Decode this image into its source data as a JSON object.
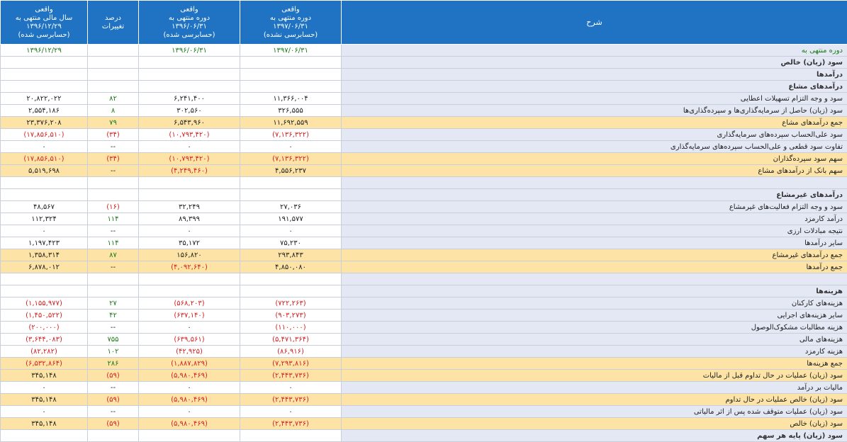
{
  "header": {
    "col_fy_1396": [
      "واقعی",
      "سال مالی منتهی به",
      "۱۳۹۶/۱۲/۲۹",
      "(حسابرسی شده)"
    ],
    "col_change": [
      "درصد",
      "تغییرات"
    ],
    "col_p_1396": [
      "واقعی",
      "دوره منتهی به",
      "۱۳۹۶/۰۶/۳۱",
      "(حسابرسی شده)"
    ],
    "col_p_1397": [
      "واقعی",
      "دوره منتهی به",
      "۱۳۹۷/۰۶/۳۱",
      "(حسابرسی نشده)"
    ],
    "col_desc": "شرح"
  },
  "colors": {
    "header_bg": "#1f73c2",
    "desc_bg": "#e4e8f4",
    "highlight_bg": "#fde4a6",
    "negative": "#d62020",
    "positive": "#1a7a1a"
  },
  "rows": [
    {
      "desc": "دوره منتهی به",
      "fy": "۱۳۹۶/۱۲/۲۹",
      "chg": "",
      "p96": "۱۳۹۶/۰۶/۳۱",
      "p97": "۱۳۹۷/۰۶/۳۱",
      "type": "green"
    },
    {
      "desc": "سود (زیان) خالص",
      "fy": "",
      "chg": "",
      "p96": "",
      "p97": "",
      "type": "bold"
    },
    {
      "desc": "درآمدها",
      "fy": "",
      "chg": "",
      "p96": "",
      "p97": "",
      "type": "bold"
    },
    {
      "desc": "درآمدهای مشاع",
      "fy": "",
      "chg": "",
      "p96": "",
      "p97": "",
      "type": "bold"
    },
    {
      "desc": "سود و وجه التزام تسهیلات اعطایی",
      "fy": "۲۰,۸۲۲,۰۲۲",
      "chg": "۸۲",
      "p96": "۶,۲۴۱,۴۰۰",
      "p97": "۱۱,۳۶۶,۰۰۴",
      "type": "normal"
    },
    {
      "desc": "سود (زیان) حاصل از سرمایه‌گذاری‌ها و سپرده‌گذاری‌ها",
      "fy": "۲,۵۵۴,۱۸۶",
      "chg": "۸",
      "p96": "۳۰۲,۵۶۰",
      "p97": "۳۲۶,۵۵۵",
      "type": "normal"
    },
    {
      "desc": "جمع درآمدهای مشاع",
      "fy": "۲۳,۳۷۶,۲۰۸",
      "chg": "۷۹",
      "p96": "۶,۵۴۳,۹۶۰",
      "p97": "۱۱,۶۹۲,۵۵۹",
      "type": "highlight"
    },
    {
      "desc": "سود علی‌الحساب سپرده‌های سرمایه‌گذاری",
      "fy": "(۱۷,۸۵۶,۵۱۰)",
      "chg": "(۳۴)",
      "p96": "(۱۰,۷۹۳,۴۲۰)",
      "p97": "(۷,۱۳۶,۳۲۲)",
      "type": "normal"
    },
    {
      "desc": "تفاوت سود قطعی و علی‌الحساب سپرده‌های سرمایه‌گذاری",
      "fy": "۰",
      "chg": "--",
      "p96": "۰",
      "p97": "۰",
      "type": "normal"
    },
    {
      "desc": "سهم سود سپرده‌گذاران",
      "fy": "(۱۷,۸۵۶,۵۱۰)",
      "chg": "(۳۴)",
      "p96": "(۱۰,۷۹۳,۴۲۰)",
      "p97": "(۷,۱۳۶,۳۲۲)",
      "type": "highlight"
    },
    {
      "desc": "سهم بانک از درآمدهای مشاع",
      "fy": "۵,۵۱۹,۶۹۸",
      "chg": "--",
      "p96": "(۴,۲۴۹,۴۶۰)",
      "p97": "۴,۵۵۶,۲۳۷",
      "type": "highlight"
    },
    {
      "desc": "",
      "fy": "",
      "chg": "",
      "p96": "",
      "p97": "",
      "type": "normal"
    },
    {
      "desc": "درآمدهای غیرمشاع",
      "fy": "",
      "chg": "",
      "p96": "",
      "p97": "",
      "type": "bold"
    },
    {
      "desc": "سود و وجه التزام فعالیت‌های غیرمشاع",
      "fy": "۴۸,۵۶۷",
      "chg": "(۱۶)",
      "p96": "۳۲,۲۴۹",
      "p97": "۲۷,۰۳۶",
      "type": "normal"
    },
    {
      "desc": "درآمد کارمزد",
      "fy": "۱۱۲,۳۲۴",
      "chg": "۱۱۴",
      "p96": "۸۹,۳۹۹",
      "p97": "۱۹۱,۵۷۷",
      "type": "normal"
    },
    {
      "desc": "نتیجه مبادلات ارزی",
      "fy": "۰",
      "chg": "--",
      "p96": "۰",
      "p97": "۰",
      "type": "normal"
    },
    {
      "desc": "سایر درآمدها",
      "fy": "۱,۱۹۷,۴۲۳",
      "chg": "۱۱۴",
      "p96": "۳۵,۱۷۲",
      "p97": "۷۵,۲۳۰",
      "type": "normal"
    },
    {
      "desc": "جمع درآمدهای غیرمشاع",
      "fy": "۱,۳۵۸,۳۱۴",
      "chg": "۸۷",
      "p96": "۱۵۶,۸۲۰",
      "p97": "۲۹۳,۸۴۳",
      "type": "highlight"
    },
    {
      "desc": "جمع درآمدها",
      "fy": "۶,۸۷۸,۰۱۲",
      "chg": "--",
      "p96": "(۴,۰۹۲,۶۴۰)",
      "p97": "۴,۸۵۰,۰۸۰",
      "type": "highlight"
    },
    {
      "desc": "",
      "fy": "",
      "chg": "",
      "p96": "",
      "p97": "",
      "type": "normal"
    },
    {
      "desc": "هزینه‌ها",
      "fy": "",
      "chg": "",
      "p96": "",
      "p97": "",
      "type": "bold"
    },
    {
      "desc": "هزینه‌های کارکنان",
      "fy": "(۱,۱۵۵,۹۷۷)",
      "chg": "۲۷",
      "p96": "(۵۶۸,۲۰۳)",
      "p97": "(۷۲۲,۲۶۳)",
      "type": "normal"
    },
    {
      "desc": "سایر هزینه‌های اجرایی",
      "fy": "(۱,۴۵۰,۵۲۲)",
      "chg": "۴۲",
      "p96": "(۶۳۷,۱۴۰)",
      "p97": "(۹۰۳,۲۷۳)",
      "type": "normal"
    },
    {
      "desc": "هزینه مطالبات مشکوک‌الوصول",
      "fy": "(۲۰۰,۰۰۰)",
      "chg": "--",
      "p96": "۰",
      "p97": "(۱۱۰,۰۰۰)",
      "type": "normal"
    },
    {
      "desc": "هزینه‌های مالی",
      "fy": "(۳,۶۴۴,۰۸۳)",
      "chg": "۷۵۵",
      "p96": "(۶۳۹,۵۶۱)",
      "p97": "(۵,۴۷۱,۳۶۴)",
      "type": "normal"
    },
    {
      "desc": "هزینه کارمزد",
      "fy": "(۸۲,۲۸۲)",
      "chg": "۱۰۲",
      "p96": "(۴۲,۹۲۵)",
      "p97": "(۸۶,۹۱۶)",
      "type": "normal"
    },
    {
      "desc": "جمع هزینه‌ها",
      "fy": "(۶,۵۳۲,۸۶۴)",
      "chg": "۲۸۶",
      "p96": "(۱,۸۸۷,۸۲۹)",
      "p97": "(۷,۲۹۳,۸۱۶)",
      "type": "highlight"
    },
    {
      "desc": "سود (زیان) عملیات در حال تداوم قبل از مالیات",
      "fy": "۳۴۵,۱۴۸",
      "chg": "(۵۹)",
      "p96": "(۵,۹۸۰,۴۶۹)",
      "p97": "(۲,۴۴۳,۷۳۶)",
      "type": "highlight"
    },
    {
      "desc": "مالیات بر درآمد",
      "fy": "۰",
      "chg": "--",
      "p96": "۰",
      "p97": "۰",
      "type": "normal"
    },
    {
      "desc": "سود (زیان) خالص عملیات در حال تداوم",
      "fy": "۳۴۵,۱۴۸",
      "chg": "(۵۹)",
      "p96": "(۵,۹۸۰,۴۶۹)",
      "p97": "(۲,۴۴۳,۷۳۶)",
      "type": "highlight"
    },
    {
      "desc": "سود (زیان) عملیات متوقف شده پس از اثر مالیاتی",
      "fy": "۰",
      "chg": "--",
      "p96": "۰",
      "p97": "۰",
      "type": "normal"
    },
    {
      "desc": "سود (زیان) خالص",
      "fy": "۳۴۵,۱۴۸",
      "chg": "(۵۹)",
      "p96": "(۵,۹۸۰,۴۶۹)",
      "p97": "(۲,۴۴۳,۷۳۶)",
      "type": "highlight"
    },
    {
      "desc": "سود (زیان) پایه هر سهم",
      "fy": "",
      "chg": "",
      "p96": "",
      "p97": "",
      "type": "bold"
    }
  ]
}
